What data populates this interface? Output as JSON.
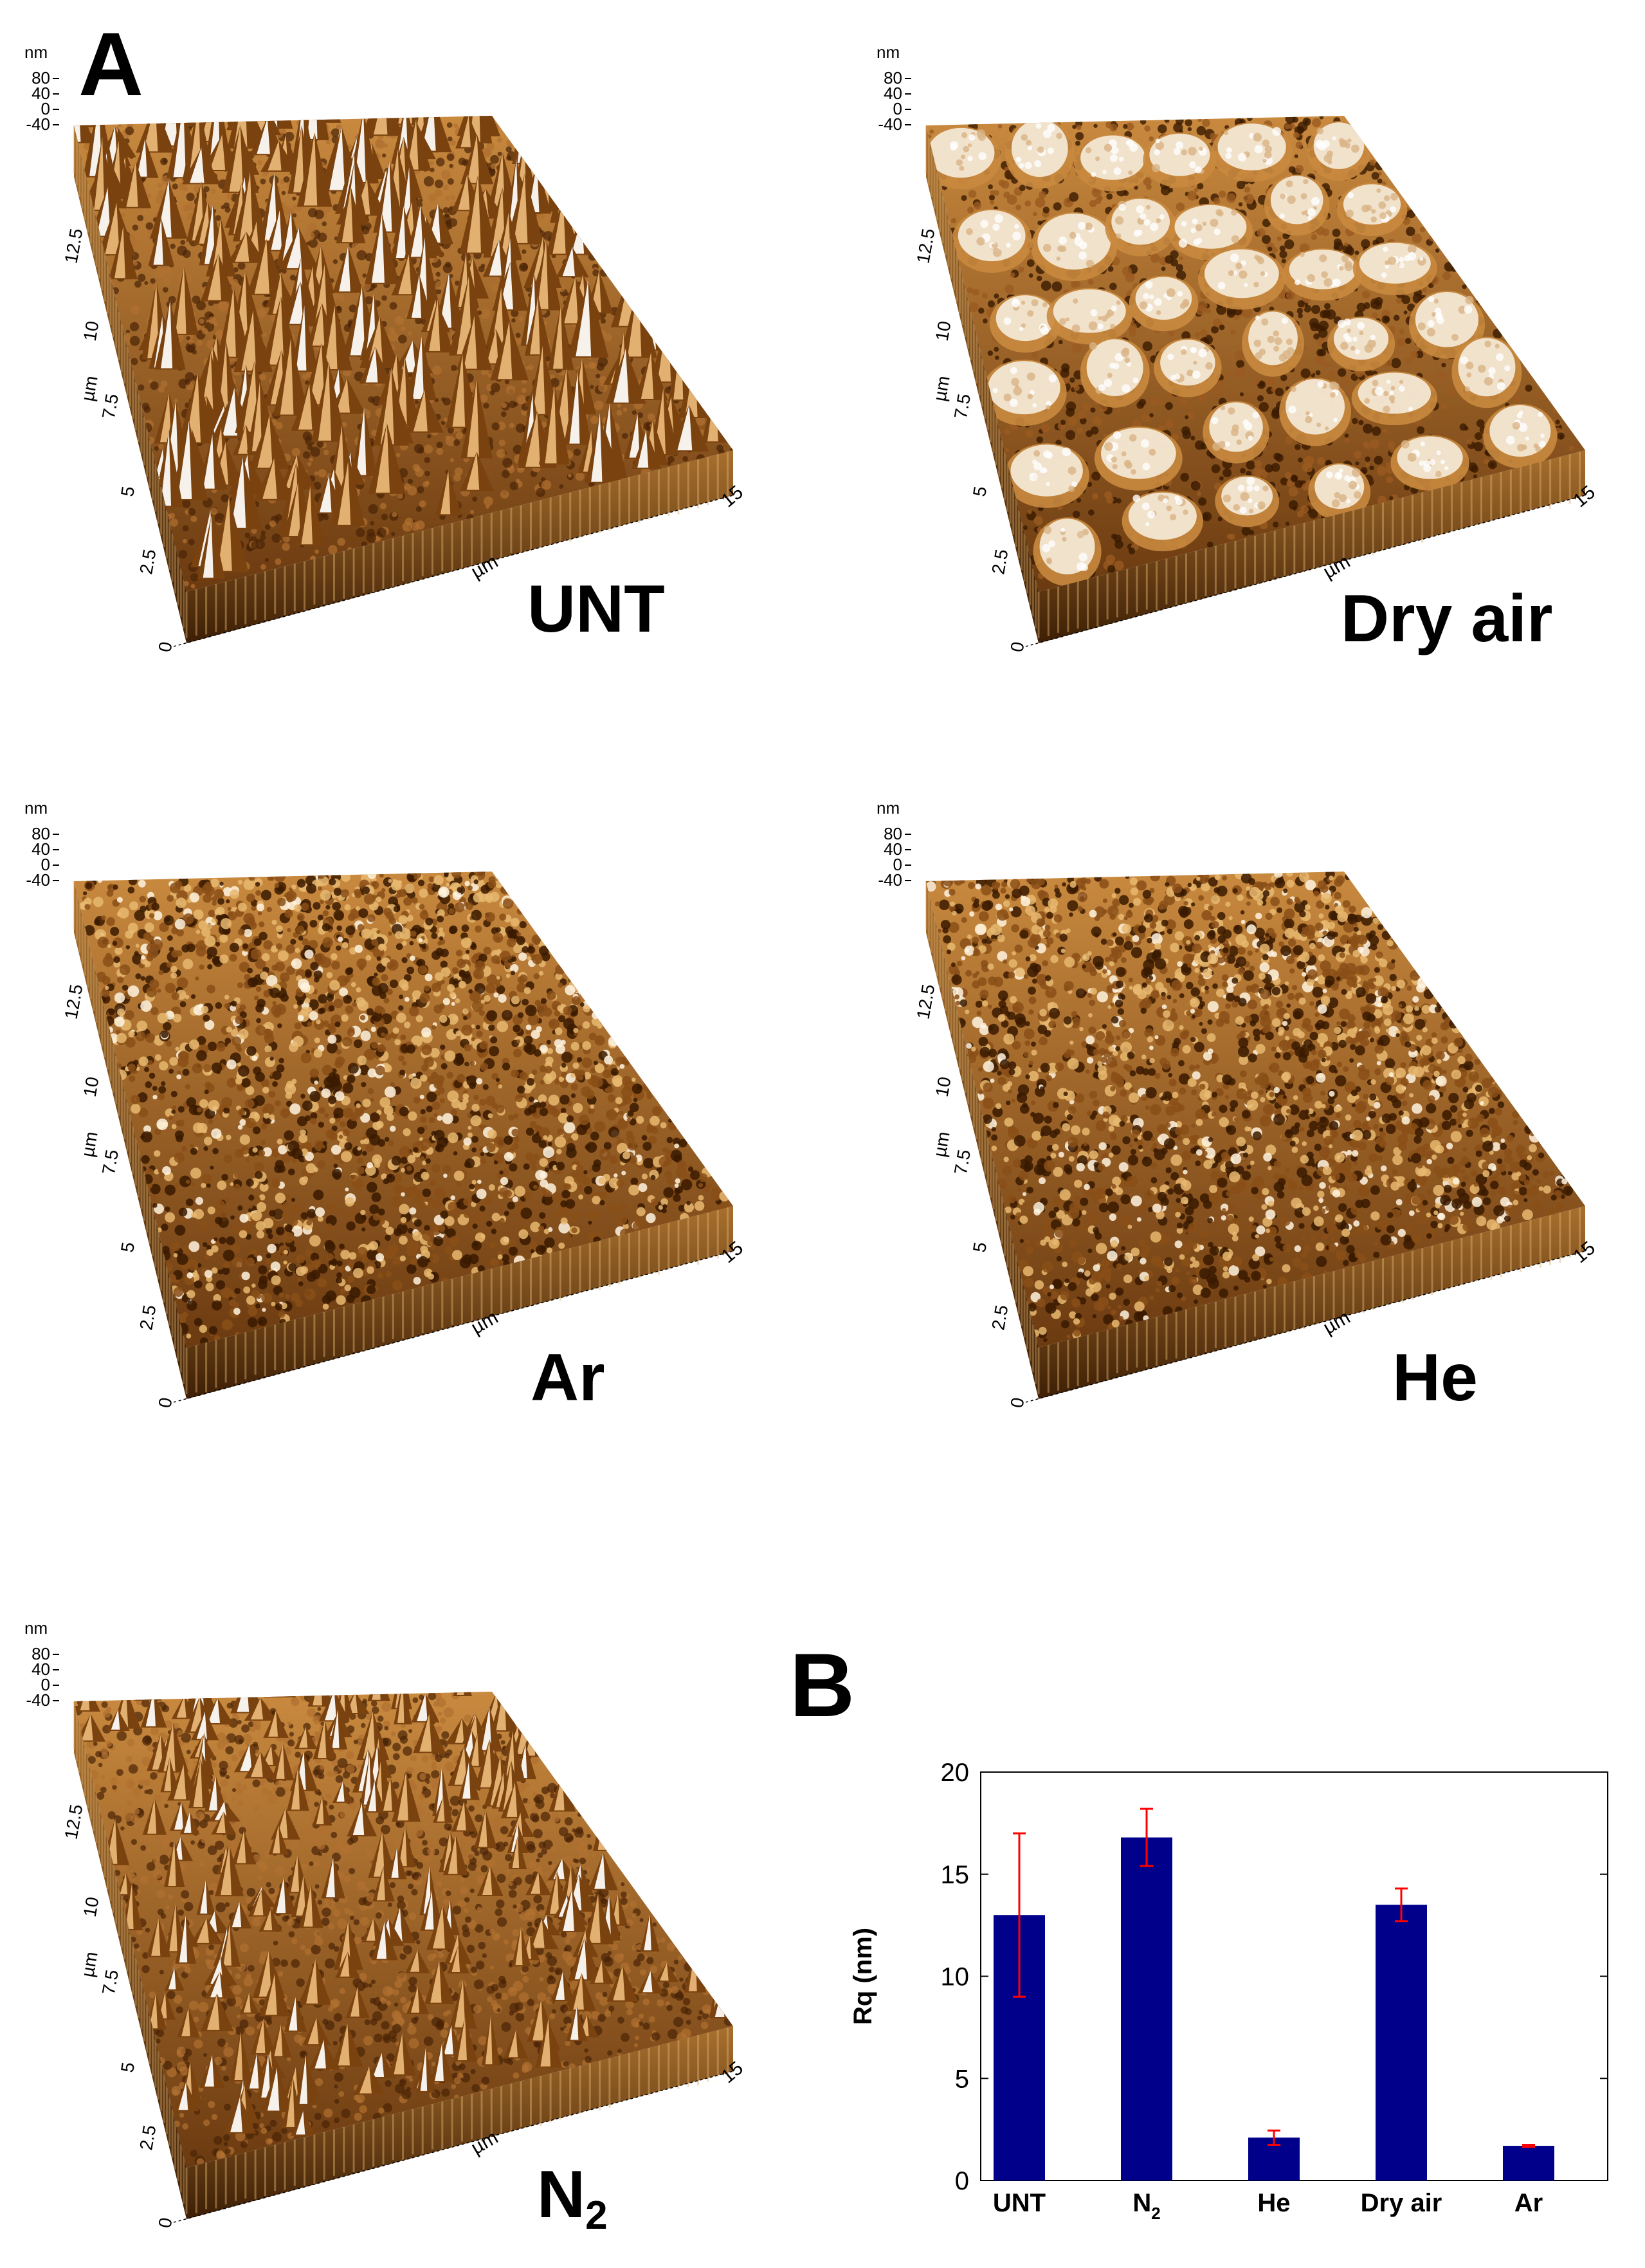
{
  "panel_a_label": "A",
  "panel_b_label": "B",
  "afm_axis": {
    "z_unit": "nm",
    "z_ticks": [
      "80",
      "40",
      "0",
      "-40"
    ],
    "y_unit": "µm",
    "y_ticks": [
      "0",
      "2.5",
      "5",
      "7.5",
      "10",
      "12.5"
    ],
    "x_unit": "µm",
    "x_tick_end": "15"
  },
  "afm_panels": [
    {
      "id": "unt",
      "label": "UNT",
      "texture": "spikes"
    },
    {
      "id": "dry-air",
      "label": "Dry air",
      "texture": "blobs"
    },
    {
      "id": "ar",
      "label": "Ar",
      "texture": "fine"
    },
    {
      "id": "he",
      "label": "He",
      "texture": "fine"
    },
    {
      "id": "n2",
      "label": "N",
      "label_sub": "2",
      "texture": "spikes-small"
    }
  ],
  "colors": {
    "bar": "#00008b",
    "error_bar": "#ff0000",
    "afm_dark": "#3a1a00",
    "afm_mid": "#b5651d",
    "afm_light": "#f5efe6"
  },
  "chart_data": {
    "type": "bar",
    "title": "",
    "xlabel": "",
    "ylabel": "Rq (nm)",
    "categories": [
      "UNT",
      "N2",
      "He",
      "Dry air",
      "Ar"
    ],
    "category_display": [
      {
        "main": "UNT",
        "sub": ""
      },
      {
        "main": "N",
        "sub": "2"
      },
      {
        "main": "He",
        "sub": ""
      },
      {
        "main": "Dry air",
        "sub": ""
      },
      {
        "main": "Ar",
        "sub": ""
      }
    ],
    "values": [
      13.0,
      16.8,
      2.1,
      13.5,
      1.7
    ],
    "errors": [
      4.0,
      1.4,
      0.35,
      0.8,
      0.05
    ],
    "ylim": [
      0,
      20
    ],
    "yticks": [
      "0",
      "5",
      "10",
      "15",
      "20"
    ],
    "grid": false,
    "legend": "none"
  }
}
